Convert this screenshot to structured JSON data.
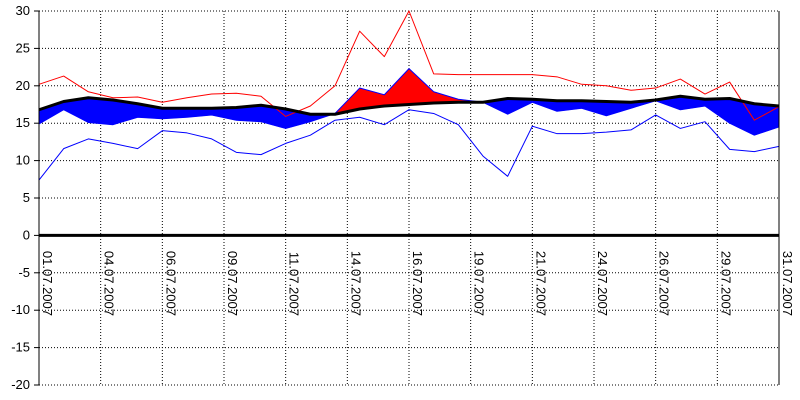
{
  "chart_data": {
    "type": "line",
    "title": "",
    "xlabel": "",
    "ylabel": "",
    "ylim": [
      -20,
      30
    ],
    "y_ticks": [
      30,
      25,
      20,
      15,
      10,
      5,
      0,
      -5,
      -10,
      -15,
      -20
    ],
    "x_tick_labels": [
      "01.07.2007",
      "04.07.2007",
      "06.07.2007",
      "09.07.2007",
      "11.07.2007",
      "14.07.2007",
      "16.07.2007",
      "19.07.2007",
      "21.07.2007",
      "24.07.2007",
      "26.07.2007",
      "29.07.2007",
      "31.07.2007"
    ],
    "x_tick_days": [
      1,
      3.5,
      6,
      8.5,
      11,
      13.5,
      16,
      18.5,
      21,
      23.5,
      26,
      28.5,
      31
    ],
    "grid": true,
    "x": [
      1,
      2,
      3,
      4,
      5,
      6,
      7,
      8,
      9,
      10,
      11,
      12,
      13,
      14,
      15,
      16,
      17,
      18,
      19,
      20,
      21,
      22,
      23,
      24,
      25,
      26,
      27,
      28,
      29,
      30,
      31
    ],
    "series": [
      {
        "role": "daily-max",
        "color": "#ff0000",
        "values": [
          20.2,
          21.3,
          19.2,
          18.4,
          18.5,
          17.8,
          18.4,
          18.9,
          19.0,
          18.6,
          15.9,
          17.3,
          20.0,
          27.3,
          23.9,
          30.0,
          21.6,
          21.5,
          21.5,
          21.5,
          21.5,
          21.2,
          20.2,
          20.0,
          19.4,
          19.7,
          20.9,
          18.9,
          20.5,
          15.4,
          17.2
        ]
      },
      {
        "role": "daily-mean",
        "color": "#0000ff",
        "values": [
          14.9,
          16.8,
          15.1,
          14.8,
          15.8,
          15.6,
          15.8,
          16.1,
          15.4,
          15.2,
          14.3,
          15.2,
          16.3,
          19.7,
          18.8,
          22.3,
          19.2,
          18.2,
          17.8,
          16.2,
          17.8,
          16.6,
          17.0,
          16.0,
          17.0,
          18.0,
          16.8,
          17.3,
          15.0,
          13.4,
          14.5
        ]
      },
      {
        "role": "daily-min",
        "color": "#0000ff",
        "values": [
          7.4,
          11.6,
          12.9,
          12.3,
          11.6,
          14.0,
          13.7,
          12.9,
          11.1,
          10.8,
          12.3,
          13.4,
          15.4,
          15.8,
          14.8,
          16.8,
          16.3,
          14.8,
          10.6,
          7.9,
          14.6,
          13.6,
          13.6,
          13.8,
          14.1,
          16.1,
          14.3,
          15.2,
          11.5,
          11.2,
          11.9
        ]
      },
      {
        "role": "long-term-normal",
        "color": "#000000",
        "values": [
          16.8,
          17.9,
          18.4,
          18.1,
          17.6,
          17.0,
          17.0,
          17.0,
          17.1,
          17.4,
          16.9,
          16.2,
          16.2,
          16.9,
          17.3,
          17.5,
          17.7,
          17.8,
          17.8,
          18.3,
          18.2,
          18.0,
          18.0,
          17.9,
          17.8,
          18.1,
          18.6,
          18.2,
          18.3,
          17.6,
          17.3
        ]
      }
    ],
    "fill_above_normal_color": "#ff0000",
    "fill_below_normal_color": "#0000ff",
    "zero_line": true
  }
}
